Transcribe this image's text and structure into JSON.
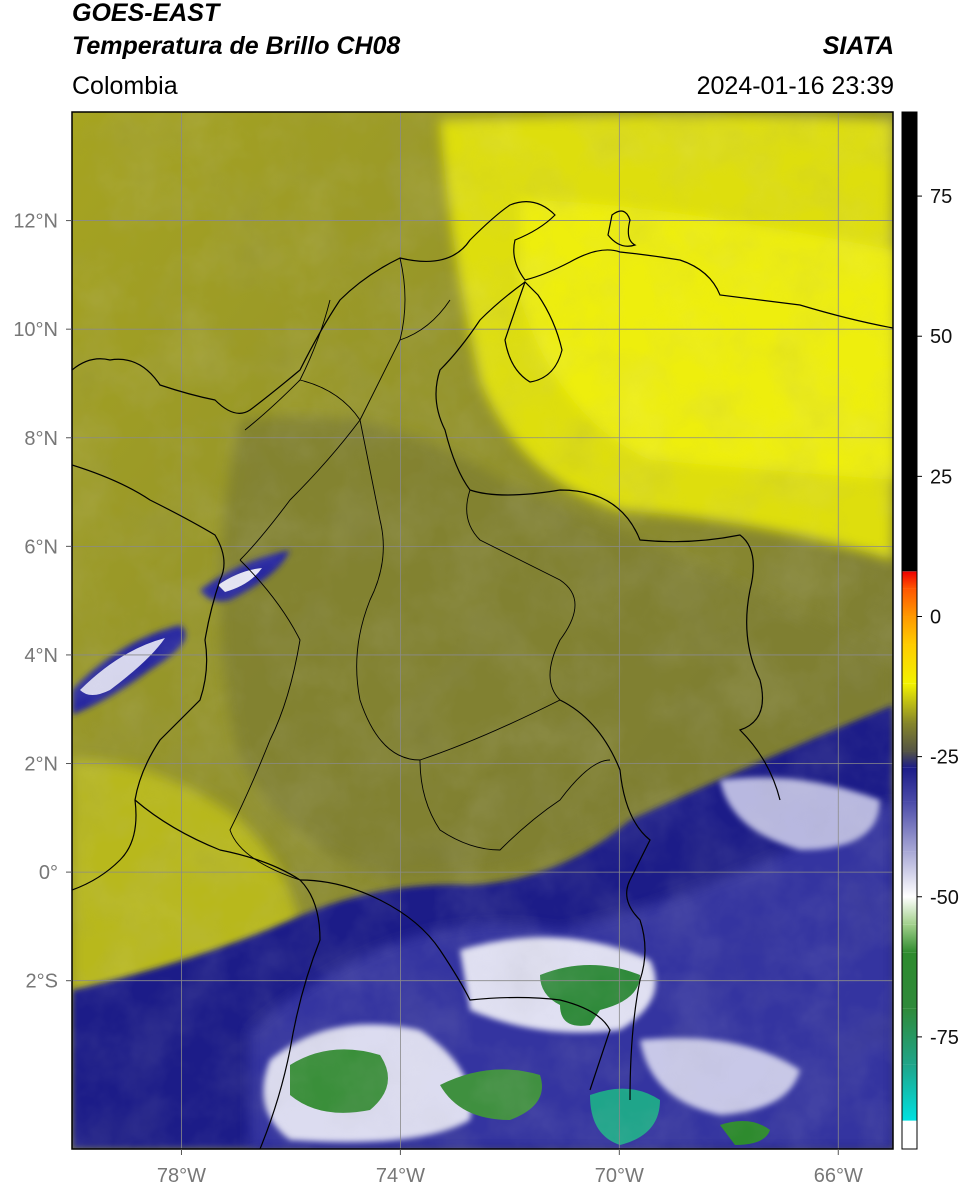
{
  "header": {
    "satellite": "GOES-EAST",
    "product": "Temperatura de Brillo CH08",
    "region": "Colombia",
    "agency": "SIATA",
    "datetime": "2024-01-16 23:39"
  },
  "map": {
    "lon_range": [
      -80,
      -65
    ],
    "lat_range": [
      -5.1,
      14
    ],
    "gridlines": true,
    "lon_ticks": [
      {
        "value": -78,
        "label": "78°W"
      },
      {
        "value": -74,
        "label": "74°W"
      },
      {
        "value": -70,
        "label": "70°W"
      },
      {
        "value": -66,
        "label": "66°W"
      }
    ],
    "lat_ticks": [
      {
        "value": 12,
        "label": "12°N"
      },
      {
        "value": 10,
        "label": "10°N"
      },
      {
        "value": 8,
        "label": "8°N"
      },
      {
        "value": 6,
        "label": "6°N"
      },
      {
        "value": 4,
        "label": "4°N"
      },
      {
        "value": 2,
        "label": "2°N"
      },
      {
        "value": 0,
        "label": "0°"
      },
      {
        "value": -2,
        "label": "2°S"
      }
    ]
  },
  "colorbar": {
    "range": [
      -95,
      90
    ],
    "ticks": [
      {
        "value": 75,
        "label": "75"
      },
      {
        "value": 50,
        "label": "50"
      },
      {
        "value": 25,
        "label": "25"
      },
      {
        "value": 0,
        "label": "0"
      },
      {
        "value": -25,
        "label": "-25"
      },
      {
        "value": -50,
        "label": "-50"
      },
      {
        "value": -75,
        "label": "-75"
      }
    ],
    "stops": [
      {
        "value": -95,
        "color": "#ffffff"
      },
      {
        "value": -90,
        "color": "#ffffff"
      },
      {
        "value": -89.9,
        "color": "#00e0e0"
      },
      {
        "value": -80,
        "color": "#1fa58a"
      },
      {
        "value": -70,
        "color": "#2f8a3a"
      },
      {
        "value": -60,
        "color": "#2e8b2e"
      },
      {
        "value": -55,
        "color": "#a0cf8a"
      },
      {
        "value": -50,
        "color": "#ffffff"
      },
      {
        "value": -42,
        "color": "#a9a9d6"
      },
      {
        "value": -33,
        "color": "#4a4aa8"
      },
      {
        "value": -27,
        "color": "#1c1c88"
      },
      {
        "value": -24,
        "color": "#555544"
      },
      {
        "value": -19,
        "color": "#86862a"
      },
      {
        "value": -12,
        "color": "#f2f200"
      },
      {
        "value": -5,
        "color": "#ffcc00"
      },
      {
        "value": 0,
        "color": "#ff9900"
      },
      {
        "value": 5,
        "color": "#ff5500"
      },
      {
        "value": 8,
        "color": "#ee0000"
      },
      {
        "value": 8.1,
        "color": "#000000"
      },
      {
        "value": 90,
        "color": "#000000"
      }
    ]
  }
}
